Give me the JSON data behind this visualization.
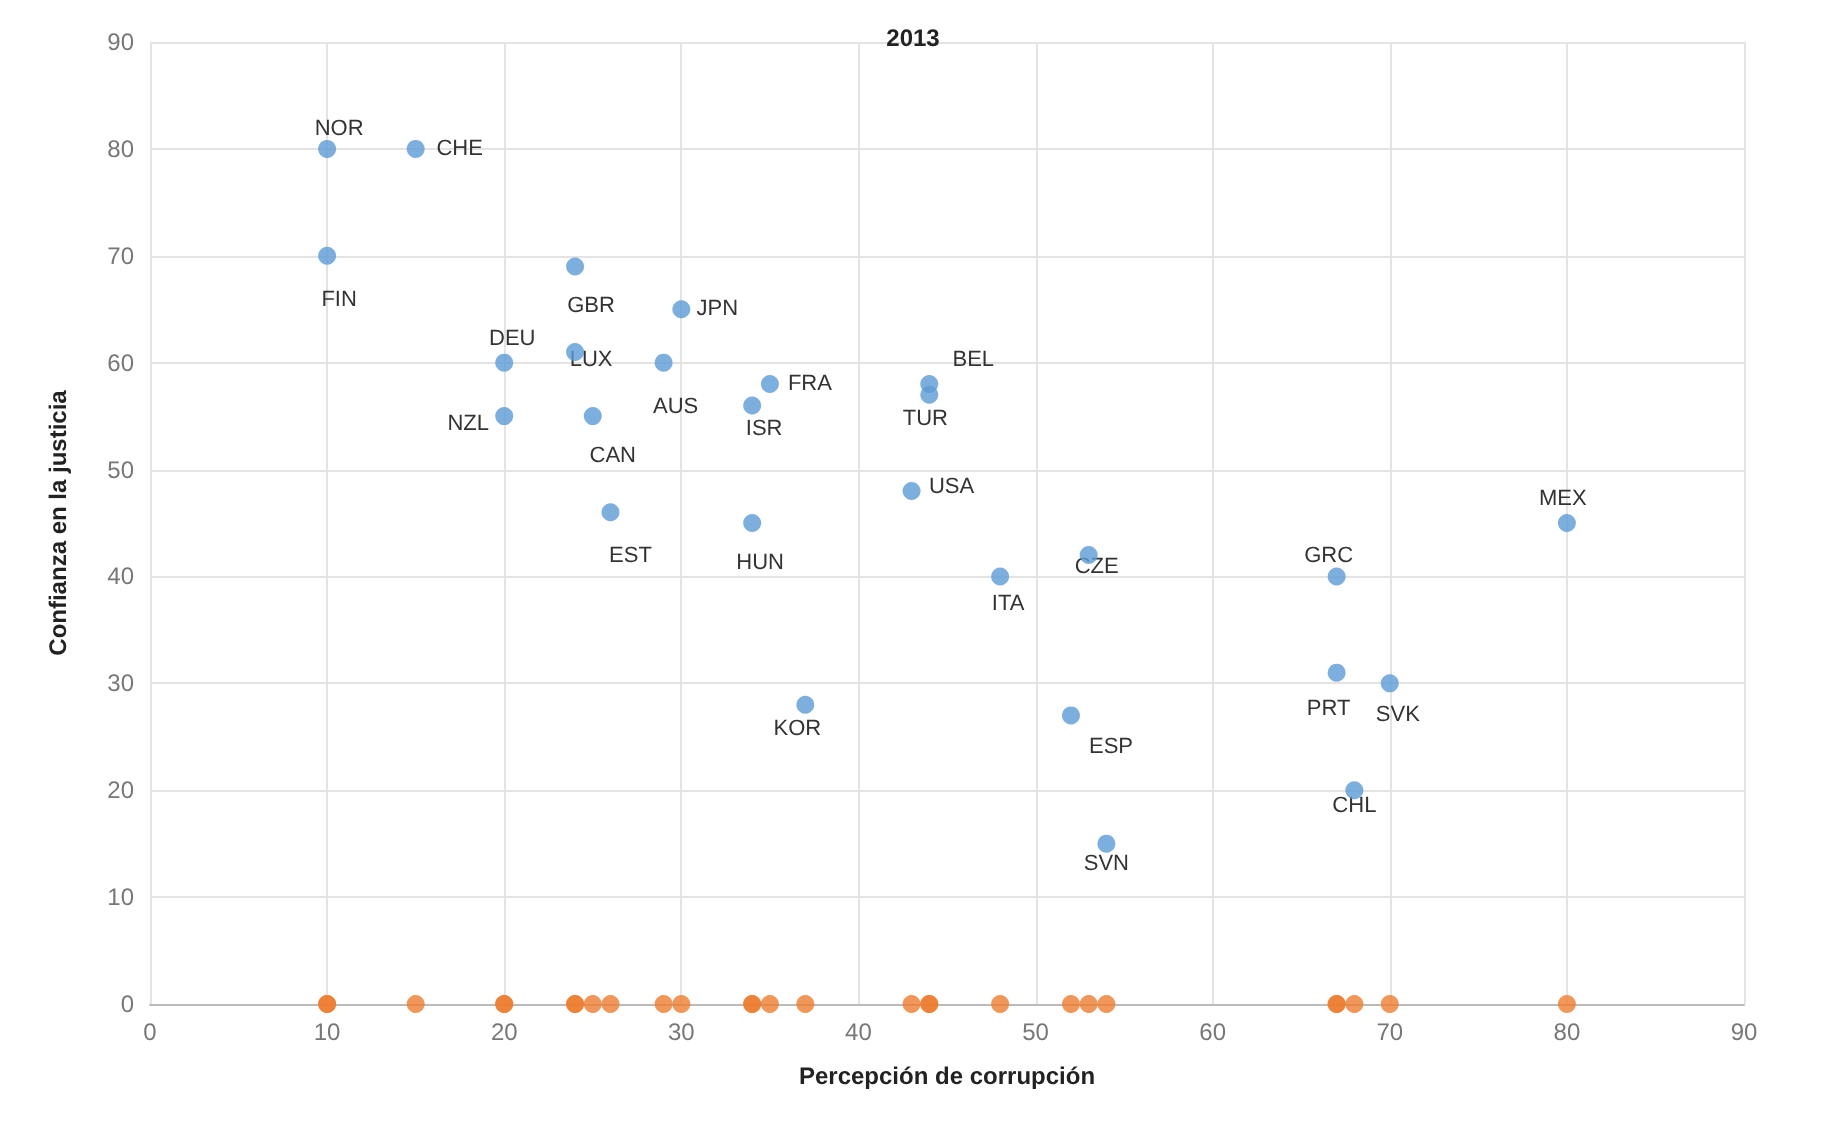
{
  "chart_data": {
    "type": "scatter",
    "title": "2013",
    "xlabel": "Percepción de corrupción",
    "ylabel": "Confianza en la justicia",
    "x": [
      10,
      15,
      10,
      24,
      30,
      20,
      24,
      29,
      20,
      25,
      35,
      34,
      44,
      44,
      43,
      26,
      34,
      48,
      53,
      67,
      80,
      67,
      70,
      37,
      52,
      68,
      54
    ],
    "series": [
      {
        "color": "#5b9bd5",
        "values": [
          80,
          80,
          70,
          69,
          65,
          60,
          61,
          60,
          55,
          55,
          58,
          56,
          57,
          58,
          48,
          46,
          45,
          40,
          42,
          40,
          45,
          31,
          30,
          28,
          27,
          20,
          15
        ]
      },
      {
        "color": "#ed7d31",
        "values": [
          0,
          0,
          0,
          0,
          0,
          0,
          0,
          0,
          0,
          0,
          0,
          0,
          0,
          0,
          0,
          0,
          0,
          0,
          0,
          0,
          0,
          0,
          0,
          0,
          0,
          0,
          0
        ]
      }
    ],
    "annotations": [
      {
        "text": "NOR",
        "x": 10,
        "y": 80
      },
      {
        "text": "CHE",
        "x": 15,
        "y": 80
      },
      {
        "text": "FIN",
        "x": 10,
        "y": 70
      },
      {
        "text": "GBR",
        "x": 24,
        "y": 69
      },
      {
        "text": "JPN",
        "x": 30,
        "y": 65
      },
      {
        "text": "DEU",
        "x": 20,
        "y": 60
      },
      {
        "text": "LUX",
        "x": 24,
        "y": 61
      },
      {
        "text": "AUS",
        "x": 29,
        "y": 60
      },
      {
        "text": "NZL",
        "x": 20,
        "y": 55
      },
      {
        "text": "CAN",
        "x": 25,
        "y": 55
      },
      {
        "text": "FRA",
        "x": 35,
        "y": 58
      },
      {
        "text": "ISR",
        "x": 34,
        "y": 56
      },
      {
        "text": "TUR",
        "x": 44,
        "y": 57
      },
      {
        "text": "BEL",
        "x": 44,
        "y": 58
      },
      {
        "text": "USA",
        "x": 43,
        "y": 48
      },
      {
        "text": "EST",
        "x": 26,
        "y": 46
      },
      {
        "text": "HUN",
        "x": 34,
        "y": 45
      },
      {
        "text": "ITA",
        "x": 48,
        "y": 40
      },
      {
        "text": "CZE",
        "x": 53,
        "y": 42
      },
      {
        "text": "GRC",
        "x": 67,
        "y": 40
      },
      {
        "text": "MEX",
        "x": 80,
        "y": 45
      },
      {
        "text": "PRT",
        "x": 67,
        "y": 31
      },
      {
        "text": "SVK",
        "x": 70,
        "y": 30
      },
      {
        "text": "KOR",
        "x": 37,
        "y": 28
      },
      {
        "text": "ESP",
        "x": 52,
        "y": 27
      },
      {
        "text": "CHL",
        "x": 68,
        "y": 20
      },
      {
        "text": "SVN",
        "x": 54,
        "y": 15
      }
    ],
    "xlim": [
      0,
      90
    ],
    "xticks": [
      0,
      10,
      20,
      30,
      40,
      50,
      60,
      70,
      80,
      90
    ],
    "ylim": [
      0,
      90
    ],
    "yticks": [
      0,
      10,
      20,
      30,
      40,
      50,
      60,
      70,
      80,
      90
    ],
    "grid": true,
    "marker": "circle"
  }
}
